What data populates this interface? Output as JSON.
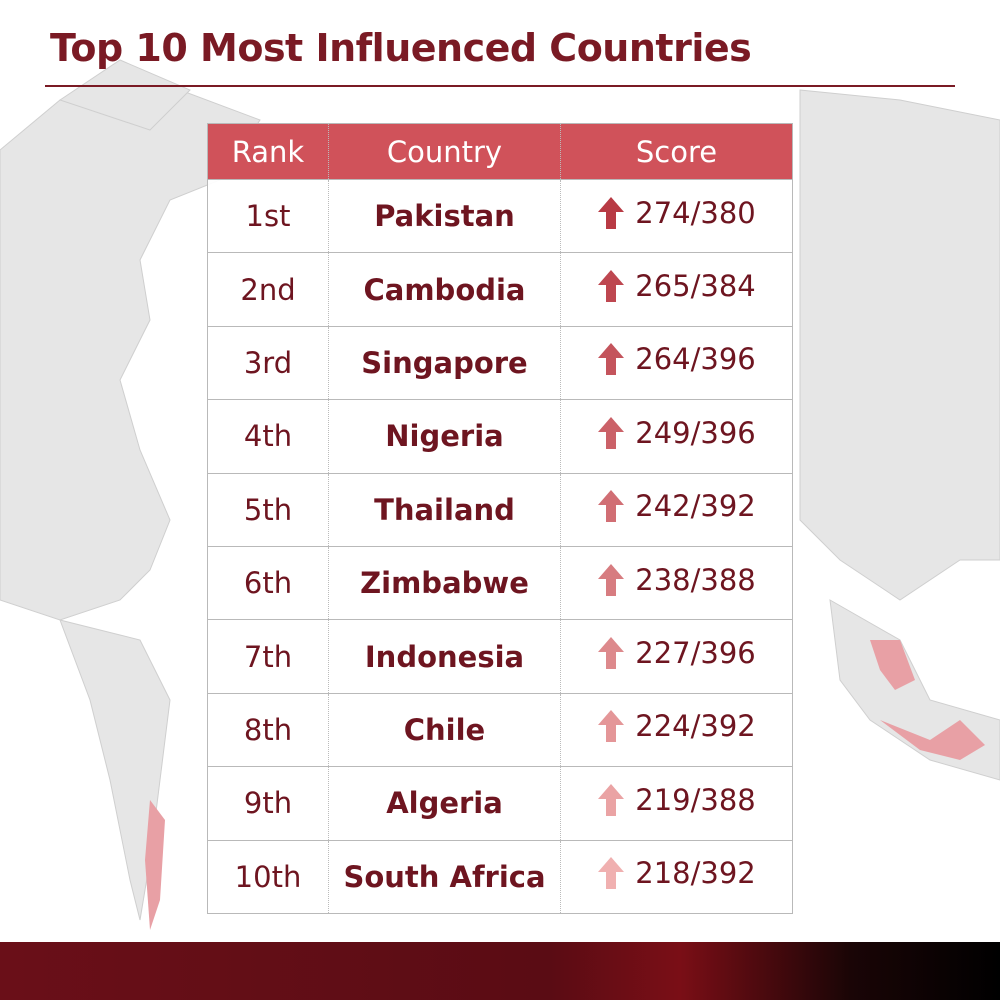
{
  "header": {
    "title": "Top 10 Most Influenced Countries"
  },
  "table": {
    "columns": [
      "Rank",
      "Country",
      "Score"
    ],
    "rows": [
      [
        "1st",
        "Pakistan",
        "274/380"
      ],
      [
        "2nd",
        "Cambodia",
        "265/384"
      ],
      [
        "3rd",
        "Singapore",
        "264/396"
      ],
      [
        "4th",
        "Nigeria",
        "249/396"
      ],
      [
        "5th",
        "Thailand",
        "242/392"
      ],
      [
        "6th",
        "Zimbabwe",
        "238/388"
      ],
      [
        "7th",
        "Indonesia",
        "227/396"
      ],
      [
        "8th",
        "Chile",
        "224/392"
      ],
      [
        "9th",
        "Algeria",
        "219/388"
      ],
      [
        "10th",
        "South Africa",
        "218/392"
      ]
    ]
  }
}
